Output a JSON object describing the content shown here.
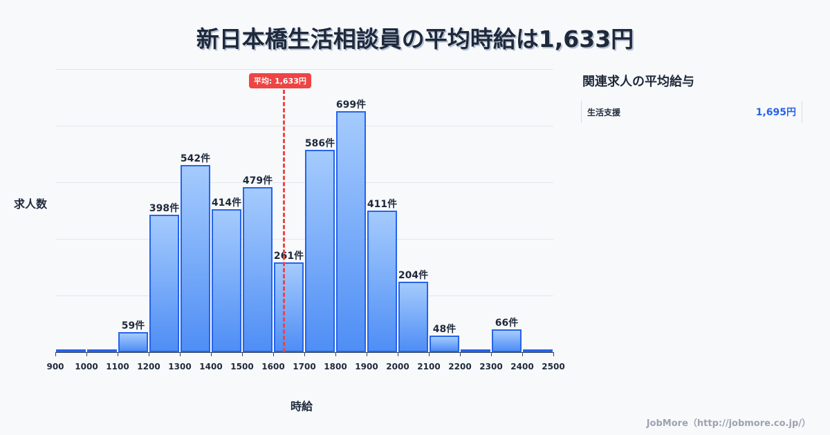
{
  "title": "新日本橋生活相談員の平均時給は1,633円",
  "average_badge": "平均: 1,633円",
  "sidebar": {
    "title": "関連求人の平均給与",
    "items": [
      {
        "name": "生活支援",
        "value": "1,695円"
      }
    ]
  },
  "footer": "JobMore（http://jobmore.co.jp/）",
  "colors": {
    "bar_fill_top": "#a5cbfd",
    "bar_fill_bottom": "#4f8ef5",
    "bar_border": "#2563eb",
    "average_line": "#ef4444",
    "accent_value": "#2563eb"
  },
  "chart_data": {
    "type": "bar",
    "title": "新日本橋生活相談員の平均時給は1,633円",
    "xlabel": "時給",
    "ylabel": "求人数",
    "bin_edges": [
      900,
      1000,
      1100,
      1200,
      1300,
      1400,
      1500,
      1600,
      1700,
      1800,
      1900,
      2000,
      2100,
      2200,
      2300,
      2400,
      2500
    ],
    "categories": [
      "900-1000",
      "1000-1100",
      "1100-1200",
      "1200-1300",
      "1300-1400",
      "1400-1500",
      "1500-1600",
      "1600-1700",
      "1700-1800",
      "1800-1900",
      "1900-2000",
      "2000-2100",
      "2100-2200",
      "2200-2300",
      "2300-2400",
      "2400-2500"
    ],
    "values": [
      2,
      8,
      59,
      398,
      542,
      414,
      479,
      261,
      586,
      699,
      411,
      204,
      48,
      8,
      66,
      2
    ],
    "labels": [
      "",
      "",
      "59件",
      "398件",
      "542件",
      "414件",
      "479件",
      "261件",
      "586件",
      "699件",
      "411件",
      "204件",
      "48件",
      "",
      "66件",
      ""
    ],
    "ylim": [
      0,
      820
    ],
    "grid": true,
    "average": {
      "value": 1633,
      "label": "平均: 1,633円"
    },
    "legend": null
  }
}
